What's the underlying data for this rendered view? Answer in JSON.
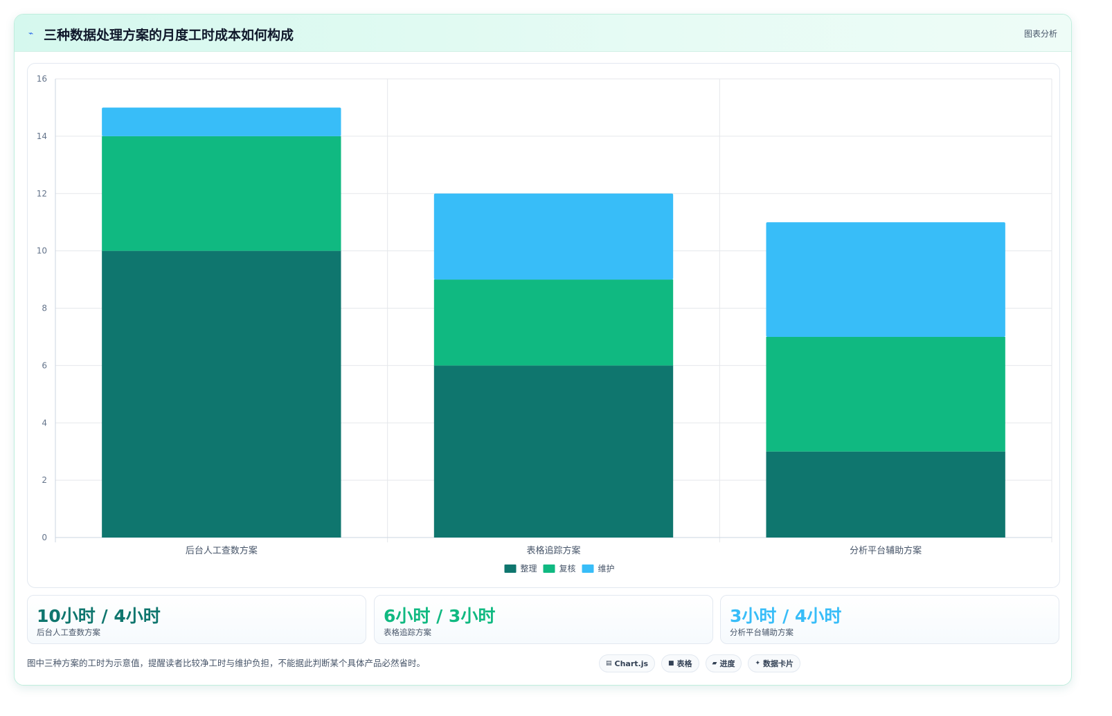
{
  "header": {
    "title": "三种数据处理方案的月度工时成本如何构成",
    "tag": "图表分析"
  },
  "colors": {
    "zhengli": "#0f766e",
    "fuhe": "#10b981",
    "weihu": "#38bdf8"
  },
  "chart_data": {
    "type": "bar",
    "stacked": true,
    "categories": [
      "后台人工查数方案",
      "表格追踪方案",
      "分析平台辅助方案"
    ],
    "series": [
      {
        "name": "整理",
        "values": [
          10,
          6,
          3
        ],
        "color": "#0f766e"
      },
      {
        "name": "复核",
        "values": [
          4,
          3,
          4
        ],
        "color": "#10b981"
      },
      {
        "name": "维护",
        "values": [
          1,
          3,
          4
        ],
        "color": "#38bdf8"
      }
    ],
    "ylim": [
      0,
      16
    ],
    "yticks": [
      0,
      2,
      4,
      6,
      8,
      10,
      12,
      14,
      16
    ],
    "grid": true,
    "legend": "bottom"
  },
  "stats": [
    {
      "value": "10小时 / 4小时",
      "label": "后台人工查数方案",
      "color": "#0f766e"
    },
    {
      "value": "6小时 / 3小时",
      "label": "表格追踪方案",
      "color": "#10b981"
    },
    {
      "value": "3小时 / 4小时",
      "label": "分析平台辅助方案",
      "color": "#38bdf8"
    }
  ],
  "footnote": "图中三种方案的工时为示意值，提醒读者比较净工时与维护负担，不能据此判断某个具体产品必然省时。",
  "chips": [
    {
      "icon": "chart-icon",
      "glyph": "▤",
      "label": "Chart.js"
    },
    {
      "icon": "table-icon",
      "glyph": "■",
      "label": "表格"
    },
    {
      "icon": "progress-icon",
      "glyph": "▰",
      "label": "进度"
    },
    {
      "icon": "sparkle-icon",
      "glyph": "✦",
      "label": "数据卡片"
    }
  ]
}
